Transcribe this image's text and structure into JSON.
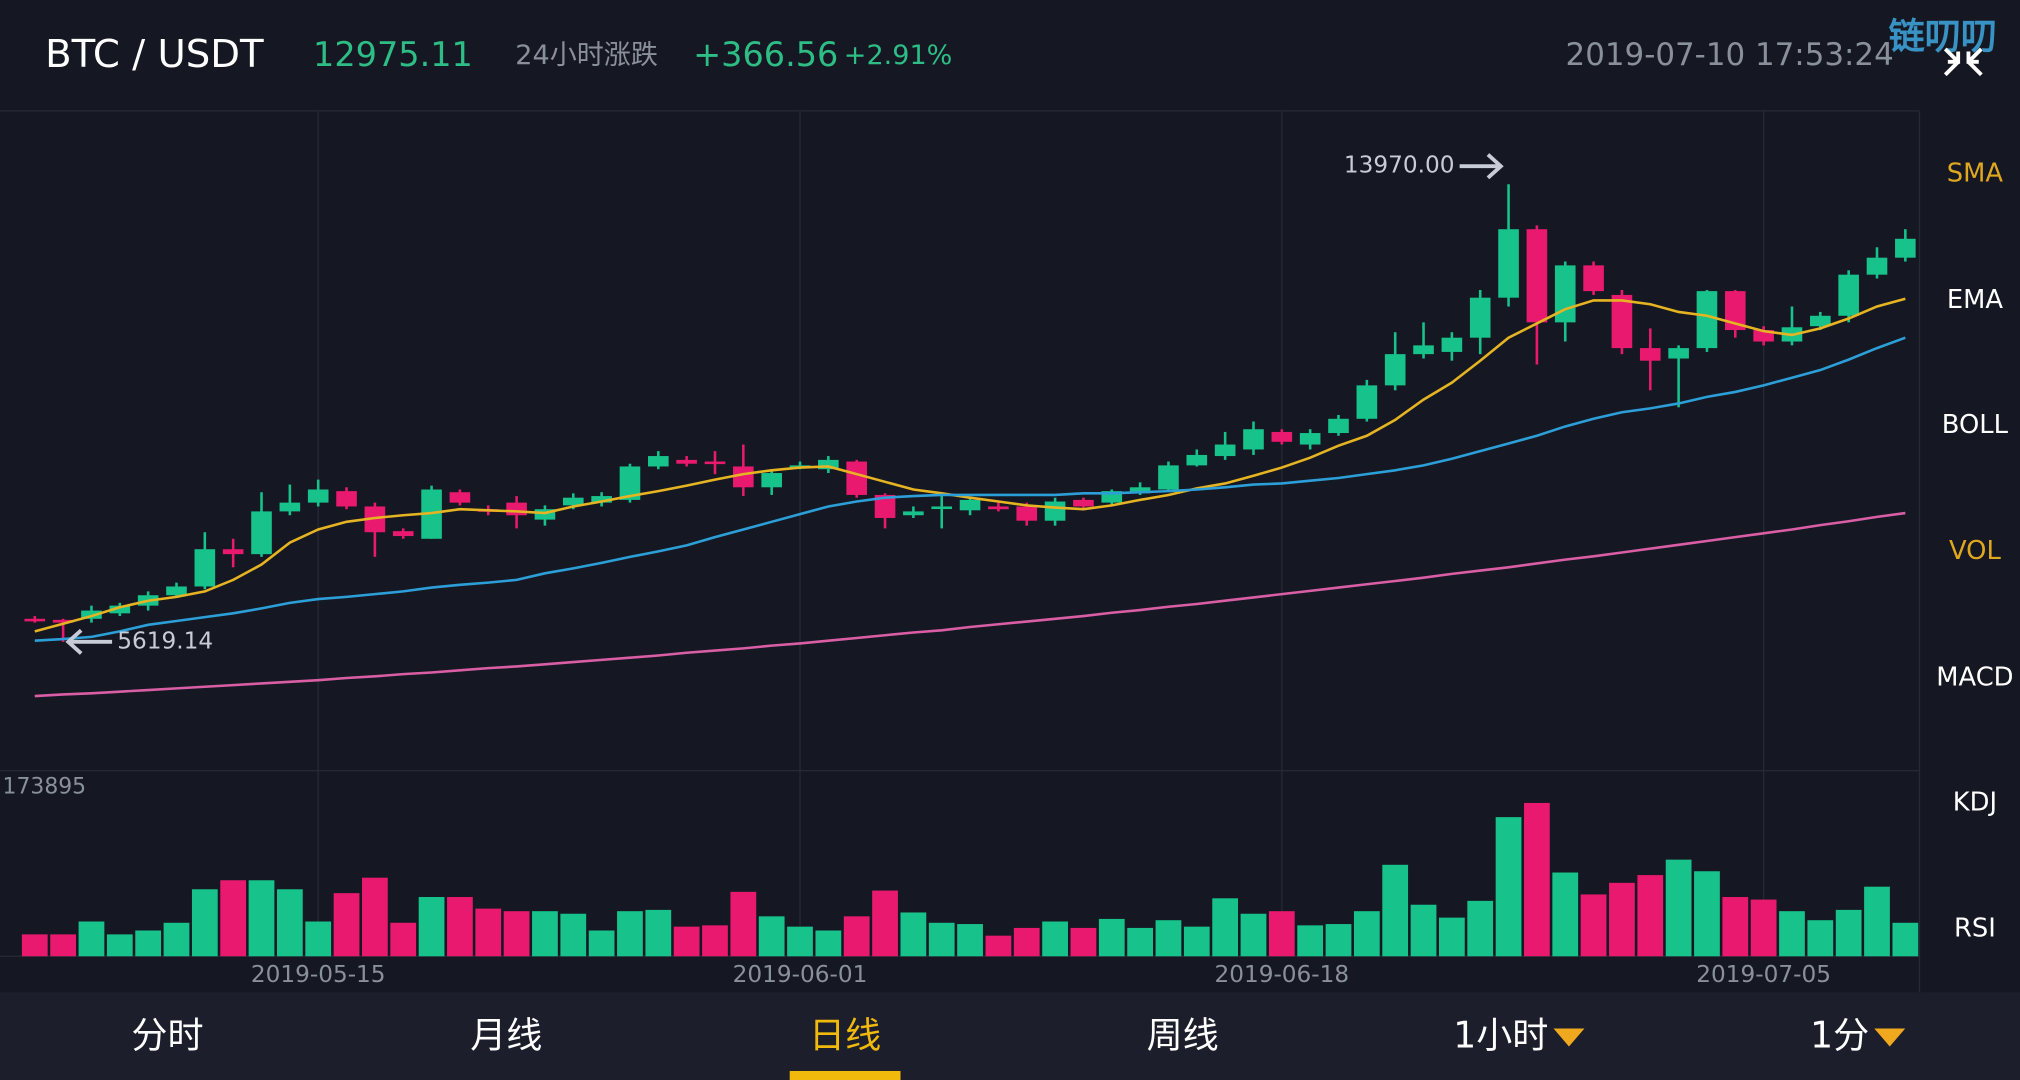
{
  "header": {
    "pair": "BTC / USDT",
    "price": "12975.11",
    "change_label": "24小时涨跌",
    "change": "+366.56",
    "change_pct": "+2.91%",
    "time": "2019-07-10 17:53:24",
    "watermark": "链叨叨"
  },
  "indicators": [
    {
      "label": "SMA",
      "active": true
    },
    {
      "label": "EMA",
      "active": false
    },
    {
      "label": "BOLL",
      "active": false
    },
    {
      "label": "VOL",
      "active": true
    },
    {
      "label": "MACD",
      "active": false
    },
    {
      "label": "KDJ",
      "active": false
    },
    {
      "label": "RSI",
      "active": false
    }
  ],
  "tabs": [
    {
      "label": "分时",
      "dropdown": false
    },
    {
      "label": "月线",
      "dropdown": false
    },
    {
      "label": "日线",
      "dropdown": false
    },
    {
      "label": "周线",
      "dropdown": false
    },
    {
      "label": "1小时",
      "dropdown": true
    },
    {
      "label": "1分",
      "dropdown": true
    }
  ],
  "active_tab": 2,
  "chart_data": {
    "type": "candlestick",
    "categories": [
      null,
      null,
      null,
      null,
      null,
      null,
      null,
      null,
      null,
      null,
      "2019-05-15",
      null,
      null,
      null,
      null,
      null,
      null,
      null,
      null,
      null,
      null,
      null,
      null,
      null,
      null,
      null,
      null,
      "2019-06-01",
      null,
      null,
      null,
      null,
      null,
      null,
      null,
      null,
      null,
      null,
      null,
      null,
      null,
      null,
      null,
      null,
      "2019-06-18",
      null,
      null,
      null,
      null,
      null,
      null,
      null,
      null,
      null,
      null,
      null,
      null,
      null,
      null,
      null,
      null,
      "2019-07-05",
      null,
      null,
      null,
      null,
      null
    ],
    "open": [
      6040,
      6020,
      6040,
      6140,
      6280,
      6470,
      6630,
      7310,
      7220,
      8000,
      8160,
      8370,
      8090,
      7640,
      7500,
      8350,
      8040,
      8160,
      7850,
      8110,
      8160,
      8210,
      8820,
      8940,
      8910,
      8820,
      8440,
      8790,
      8770,
      8910,
      8300,
      7930,
      8060,
      8020,
      8090,
      8090,
      7830,
      8210,
      8160,
      8330,
      8400,
      8840,
      9010,
      9130,
      9450,
      9220,
      9430,
      9690,
      10300,
      10870,
      10910,
      11170,
      11900,
      13150,
      11450,
      12490,
      11950,
      10980,
      10790,
      10980,
      12020,
      11310,
      11100,
      11380,
      11570,
      12320,
      12630
    ],
    "high": [
      6090,
      6040,
      6280,
      6330,
      6540,
      6700,
      7620,
      7500,
      8350,
      8490,
      8580,
      8440,
      8160,
      7690,
      8470,
      8400,
      8110,
      8280,
      8110,
      8330,
      8350,
      8870,
      9100,
      9010,
      9100,
      9220,
      8770,
      8910,
      9010,
      8940,
      8330,
      8090,
      8280,
      8250,
      8160,
      8160,
      8250,
      8250,
      8400,
      8530,
      8910,
      9130,
      9450,
      9640,
      9500,
      9500,
      9760,
      10400,
      11270,
      11450,
      11270,
      12040,
      13970,
      13220,
      12560,
      12560,
      12040,
      11340,
      11030,
      12040,
      12040,
      11380,
      11740,
      11640,
      12400,
      12820,
      13150
    ],
    "low": [
      5970,
      5619.14,
      5970,
      6090,
      6190,
      6420,
      6580,
      6980,
      7170,
      7930,
      8090,
      8040,
      7170,
      7500,
      7500,
      8110,
      7930,
      7690,
      7740,
      8040,
      8090,
      8160,
      8770,
      8820,
      8680,
      8280,
      8300,
      8770,
      8700,
      8250,
      7690,
      7880,
      7690,
      7930,
      8000,
      7740,
      7740,
      8040,
      8110,
      8300,
      8370,
      8820,
      8940,
      9030,
      9220,
      9130,
      9380,
      9640,
      10210,
      10790,
      10750,
      10870,
      11740,
      10680,
      11100,
      11950,
      10870,
      10210,
      9900,
      10910,
      11170,
      11030,
      11030,
      11310,
      11450,
      12250,
      12560
    ],
    "close": [
      6020,
      5970,
      6190,
      6280,
      6470,
      6630,
      7310,
      7220,
      8000,
      8160,
      8400,
      8090,
      7620,
      7550,
      8400,
      8160,
      8020,
      7930,
      8040,
      8250,
      8280,
      8820,
      9010,
      8870,
      8880,
      8440,
      8700,
      8840,
      8940,
      8300,
      7880,
      8000,
      8090,
      8210,
      8040,
      7830,
      8180,
      8090,
      8370,
      8440,
      8840,
      9030,
      9220,
      9500,
      9270,
      9430,
      9690,
      10300,
      10870,
      11030,
      11170,
      11900,
      13150,
      11450,
      12490,
      12020,
      10980,
      10750,
      10980,
      12020,
      11310,
      11100,
      11360,
      11570,
      12320,
      12630,
      12975.11
    ],
    "up_color": "#17c28b",
    "down_color": "#e8196e",
    "ylim": [
      3268,
      15263
    ],
    "high_label": "13970.00",
    "low_label": "5619.14",
    "lines": [
      {
        "color": "#e6b422",
        "values": [
          5810,
          5950,
          6090,
          6250,
          6370,
          6440,
          6540,
          6750,
          7030,
          7430,
          7670,
          7810,
          7880,
          7930,
          7970,
          8040,
          8020,
          8000,
          7970,
          8090,
          8180,
          8280,
          8370,
          8470,
          8580,
          8680,
          8750,
          8800,
          8820,
          8680,
          8540,
          8400,
          8330,
          8250,
          8180,
          8110,
          8070,
          8040,
          8110,
          8210,
          8300,
          8420,
          8510,
          8650,
          8800,
          8980,
          9200,
          9380,
          9670,
          10040,
          10350,
          10750,
          11170,
          11430,
          11690,
          11850,
          11850,
          11780,
          11640,
          11570,
          11430,
          11290,
          11220,
          11340,
          11520,
          11740,
          11880
        ]
      },
      {
        "color": "#2d9fd8",
        "values": [
          5640,
          5670,
          5710,
          5810,
          5930,
          6000,
          6070,
          6140,
          6230,
          6330,
          6400,
          6440,
          6490,
          6540,
          6610,
          6660,
          6700,
          6750,
          6870,
          6960,
          7060,
          7170,
          7270,
          7380,
          7530,
          7670,
          7810,
          7950,
          8090,
          8180,
          8250,
          8280,
          8300,
          8300,
          8300,
          8300,
          8300,
          8330,
          8330,
          8350,
          8370,
          8400,
          8440,
          8490,
          8510,
          8560,
          8610,
          8680,
          8750,
          8840,
          8960,
          9100,
          9240,
          9380,
          9550,
          9690,
          9810,
          9880,
          9970,
          10090,
          10180,
          10300,
          10440,
          10580,
          10770,
          10980,
          11170
        ]
      },
      {
        "color": "#d95ea6",
        "values": [
          4630,
          4660,
          4680,
          4710,
          4740,
          4770,
          4800,
          4830,
          4860,
          4890,
          4920,
          4960,
          4990,
          5030,
          5060,
          5100,
          5140,
          5170,
          5210,
          5250,
          5290,
          5330,
          5370,
          5420,
          5460,
          5500,
          5550,
          5590,
          5640,
          5690,
          5740,
          5790,
          5830,
          5890,
          5940,
          5990,
          6040,
          6090,
          6150,
          6200,
          6260,
          6310,
          6370,
          6430,
          6490,
          6550,
          6610,
          6670,
          6730,
          6790,
          6860,
          6920,
          6980,
          7050,
          7120,
          7180,
          7250,
          7320,
          7390,
          7460,
          7530,
          7600,
          7670,
          7750,
          7820,
          7900,
          7970
        ]
      }
    ],
    "volume": {
      "values": [
        21570,
        21570,
        34260,
        21570,
        25380,
        32990,
        65990,
        74870,
        74870,
        65990,
        34260,
        62180,
        77410,
        32990,
        58370,
        58370,
        46950,
        44420,
        44420,
        41880,
        25380,
        44420,
        45680,
        29190,
        30460,
        63450,
        39340,
        29190,
        25380,
        39340,
        64720,
        43150,
        32990,
        31730,
        20300,
        27920,
        34260,
        27920,
        36800,
        27920,
        35530,
        29190,
        57110,
        41880,
        44420,
        30460,
        31730,
        44420,
        90100,
        50760,
        38070,
        54570,
        137050,
        151010,
        82490,
        60910,
        72330,
        79950,
        95180,
        83750,
        58370,
        55840,
        44420,
        35530,
        45680,
        68530,
        32990
      ],
      "ylim": [
        0,
        173895
      ]
    },
    "grid": true
  }
}
